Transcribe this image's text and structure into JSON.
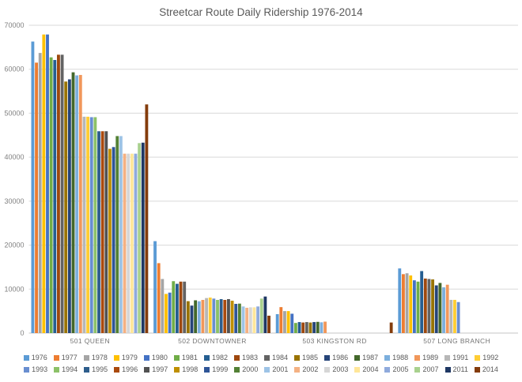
{
  "title": "Streetcar Route Daily Ridership 1976-2014",
  "colors": {
    "background": "#FFFFFF",
    "title_text": "#595959",
    "gridline": "#D9D9D9",
    "axis_line": "#C6C6C6",
    "tick_label": "#808080",
    "category_label": "#757575",
    "legend_label": "#595959"
  },
  "chart_data": {
    "type": "bar",
    "title": "Streetcar Route Daily Ridership 1976-2014",
    "xlabel": "",
    "ylabel": "",
    "ylim": [
      0,
      70000
    ],
    "ytick_step": 10000,
    "ytick_labels": [
      "0",
      "10000",
      "20000",
      "30000",
      "40000",
      "50000",
      "60000",
      "70000"
    ],
    "grid": true,
    "legend_position": "bottom",
    "legend_rows": 2,
    "categories": [
      "501 QUEEN",
      "502 DOWNTOWNER",
      "503 KINGSTON RD",
      "507 LONG BRANCH"
    ],
    "series": [
      {
        "name": "1976",
        "color": "#5B9BD5",
        "values": [
          66300,
          20900,
          4300,
          14700
        ]
      },
      {
        "name": "1977",
        "color": "#ED7D31",
        "values": [
          61500,
          15900,
          5900,
          13400
        ]
      },
      {
        "name": "1978",
        "color": "#A5A5A5",
        "values": [
          63700,
          12300,
          5000,
          13600
        ]
      },
      {
        "name": "1979",
        "color": "#FFC000",
        "values": [
          67900,
          8900,
          5000,
          13100
        ]
      },
      {
        "name": "1980",
        "color": "#4472C4",
        "values": [
          67900,
          9200,
          4400,
          12000
        ]
      },
      {
        "name": "1981",
        "color": "#70AD47",
        "values": [
          62700,
          11800,
          2300,
          11700
        ]
      },
      {
        "name": "1982",
        "color": "#255E91",
        "values": [
          62100,
          11200,
          2500,
          14100
        ]
      },
      {
        "name": "1983",
        "color": "#9E480E",
        "values": [
          63300,
          11700,
          2400,
          12400
        ]
      },
      {
        "name": "1984",
        "color": "#636363",
        "values": [
          63300,
          11700,
          2500,
          12300
        ]
      },
      {
        "name": "1985",
        "color": "#997300",
        "values": [
          57200,
          7250,
          2400,
          12200
        ]
      },
      {
        "name": "1986",
        "color": "#264478",
        "values": [
          57700,
          6250,
          2500,
          10850
        ]
      },
      {
        "name": "1987",
        "color": "#43682B",
        "values": [
          59300,
          7450,
          2550,
          11400
        ]
      },
      {
        "name": "1988",
        "color": "#7CAFDD",
        "values": [
          58600,
          7230,
          2450,
          10400
        ]
      },
      {
        "name": "1989",
        "color": "#F1975A",
        "values": [
          58700,
          7540,
          2600,
          11000
        ]
      },
      {
        "name": "1991",
        "color": "#B7B7B7",
        "values": [
          49200,
          7960,
          null,
          7550
        ]
      },
      {
        "name": "1992",
        "color": "#FFCD33",
        "values": [
          49200,
          8080,
          null,
          7550
        ]
      },
      {
        "name": "1993",
        "color": "#698ED0",
        "values": [
          49100,
          7840,
          null,
          7050
        ]
      },
      {
        "name": "1994",
        "color": "#8CC168",
        "values": [
          49100,
          7540,
          null,
          null
        ]
      },
      {
        "name": "1995",
        "color": "#2E5E8C",
        "values": [
          45900,
          7720,
          null,
          null
        ]
      },
      {
        "name": "1996",
        "color": "#AA4A0E",
        "values": [
          45900,
          7540,
          null,
          null
        ]
      },
      {
        "name": "1997",
        "color": "#525252",
        "values": [
          45900,
          7720,
          null,
          null
        ]
      },
      {
        "name": "1998",
        "color": "#BF8F00",
        "values": [
          41900,
          7360,
          null,
          null
        ]
      },
      {
        "name": "1999",
        "color": "#2F5597",
        "values": [
          42300,
          6640,
          null,
          null
        ]
      },
      {
        "name": "2000",
        "color": "#538135",
        "values": [
          44800,
          6700,
          null,
          null
        ]
      },
      {
        "name": "2001",
        "color": "#9DC3E6",
        "values": [
          44800,
          6050,
          null,
          null
        ]
      },
      {
        "name": "2002",
        "color": "#F4B183",
        "values": [
          40800,
          5750,
          null,
          null
        ]
      },
      {
        "name": "2003",
        "color": "#D6D6D6",
        "values": [
          40800,
          5850,
          null,
          null
        ]
      },
      {
        "name": "2004",
        "color": "#FFE699",
        "values": [
          40800,
          5850,
          null,
          null
        ]
      },
      {
        "name": "2005",
        "color": "#8FAADC",
        "values": [
          40800,
          6050,
          null,
          null
        ]
      },
      {
        "name": "2007",
        "color": "#A9D18E",
        "values": [
          43200,
          7840,
          null,
          null
        ]
      },
      {
        "name": "2011",
        "color": "#1F3864",
        "values": [
          43300,
          8310,
          null,
          null
        ]
      },
      {
        "name": "2014",
        "color": "#843C0C",
        "values": [
          52000,
          3950,
          2400,
          null
        ]
      }
    ]
  }
}
